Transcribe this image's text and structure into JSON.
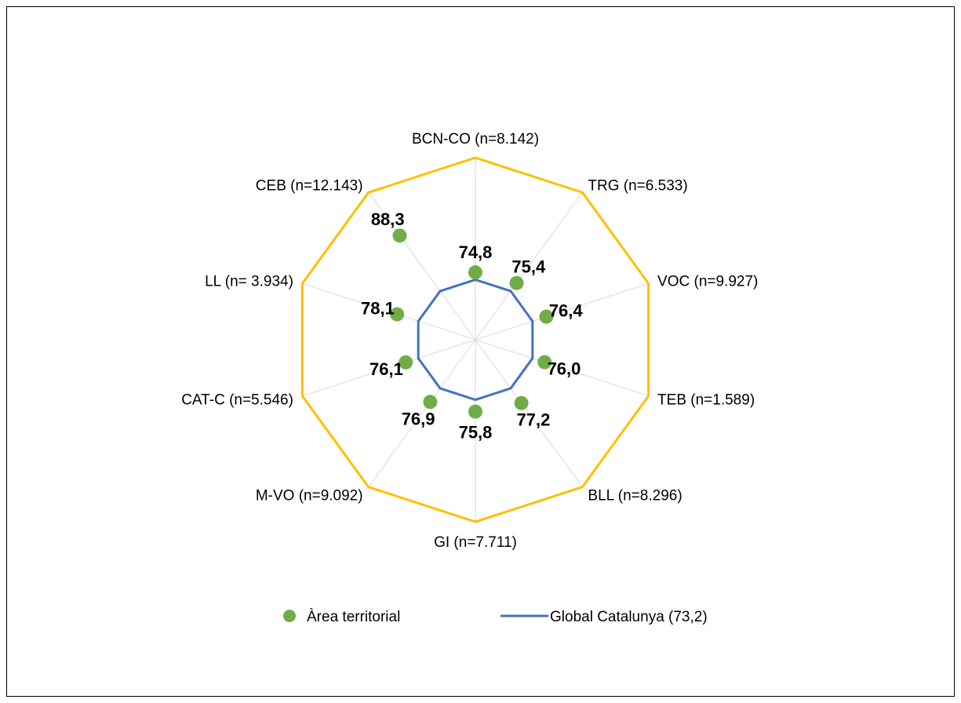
{
  "chart_data": {
    "type": "radar",
    "categories": [
      "BCN-CO (n=8.142)",
      "TRG (n=6.533)",
      "VOC (n=9.927)",
      "TEB (n=1.589)",
      "BLL (n=8.296)",
      "GI (n=7.711)",
      "M-VO (n=9.092)",
      "CAT-C (n=5.546)",
      "LL (n= 3.934)",
      "CEB (n=12.143)"
    ],
    "series": [
      {
        "name": "Àrea territorial",
        "style": "markers",
        "color": "#70ad47",
        "values": [
          74.8,
          75.4,
          76.4,
          76.0,
          77.2,
          75.8,
          76.9,
          76.1,
          78.1,
          88.3
        ],
        "value_labels": [
          "74,8",
          "75,4",
          "76,4",
          "76,0",
          "77,2",
          "75,8",
          "76,9",
          "76,1",
          "78,1",
          "88,3"
        ]
      },
      {
        "name": "Global Catalunya (73,2)",
        "style": "line",
        "color": "#4472c4",
        "values": [
          73.2,
          73.2,
          73.2,
          73.2,
          73.2,
          73.2,
          73.2,
          73.2,
          73.2,
          73.2
        ]
      }
    ],
    "outer_ring_color": "#ffc000",
    "spoke_color": "#d9d9d9",
    "r_min": 60,
    "r_max": 100,
    "legend_position": "bottom"
  }
}
